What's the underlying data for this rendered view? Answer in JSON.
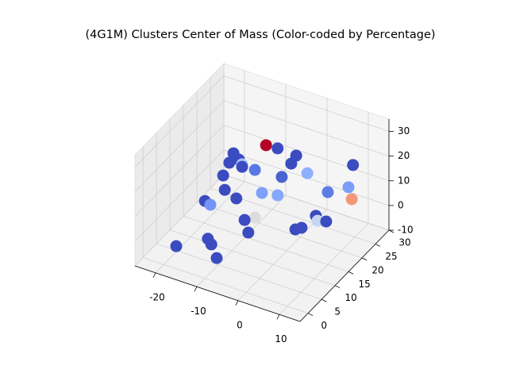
{
  "chart_data": {
    "type": "scatter3d",
    "title": "(4G1M) Clusters Center of Mass (Color-coded by Percentage)",
    "x": [
      -4.0,
      -1.2,
      3.3,
      -11.9,
      -12.9,
      -10.6,
      -9.8,
      -9.8,
      -6.7,
      2.1,
      6.0,
      10.6,
      9.5,
      10.3,
      4.5,
      -14.4,
      -0.2,
      -14.0,
      -5.0,
      -1.2,
      -11.2,
      -18.8,
      -17.5,
      -6.7,
      -9.2,
      1.6,
      2.0,
      4.1,
      4.6,
      3.1,
      -8.3,
      -13.8,
      -19.3,
      -10.8,
      -9.5
    ],
    "y": [
      13.5,
      13.5,
      13.5,
      13.5,
      13.5,
      13.5,
      13.5,
      13.5,
      13.5,
      13.5,
      13.5,
      23.4,
      23.4,
      23.4,
      23.4,
      13.5,
      13.5,
      13.5,
      13.5,
      13.5,
      13.5,
      13.5,
      13.5,
      13.5,
      13.5,
      23.4,
      23.4,
      23.4,
      13.5,
      13.5,
      13.5,
      6.9,
      3.6,
      3.6,
      3.6
    ],
    "z": [
      32.2,
      32.5,
      32.1,
      24.5,
      20.1,
      22.7,
      21.2,
      20.2,
      20.7,
      28.2,
      26.5,
      21.3,
      11.7,
      7.3,
      6.9,
      14.1,
      21.5,
      8.5,
      12.3,
      13.5,
      6.6,
      1.3,
      0.5,
      1.4,
      -1.0,
      -4.3,
      -6.1,
      -5.2,
      3.6,
      2.1,
      -5.6,
      -3.8,
      -6.2,
      -0.7,
      -5.5
    ],
    "colors": [
      "#b40426",
      "#3b4cc0",
      "#3b4cc0",
      "#3b4cc0",
      "#3b4cc0",
      "#3b4cc0",
      "#aac7fd",
      "#3b4cc0",
      "#5a78e4",
      "#3b4cc0",
      "#8db0fe",
      "#3b4cc0",
      "#7b9ff9",
      "#f4987a",
      "#5d7ce6",
      "#3b4cc0",
      "#4a63d3",
      "#3b4cc0",
      "#7da0f9",
      "#85a8fc",
      "#3b4cc0",
      "#3b4cc0",
      "#7396f5",
      "#dddcdc",
      "#3b4cc0",
      "#3b4cc0",
      "#c5d6f2",
      "#3b4cc0",
      "#3b4cc0",
      "#3b4cc0",
      "#3b4cc0",
      "#3b4cc0",
      "#3b4cc0",
      "#3b4cc0",
      "#3b4cc0"
    ],
    "xlim": [
      -25,
      15
    ],
    "ylim": [
      -3,
      30
    ],
    "zlim": [
      -10,
      35
    ],
    "xticks": [
      -20,
      -10,
      0,
      10
    ],
    "yticks": [
      0,
      5,
      10,
      15,
      20,
      25,
      30
    ],
    "zticks": [
      -10,
      0,
      10,
      20,
      30
    ],
    "grid": true
  }
}
